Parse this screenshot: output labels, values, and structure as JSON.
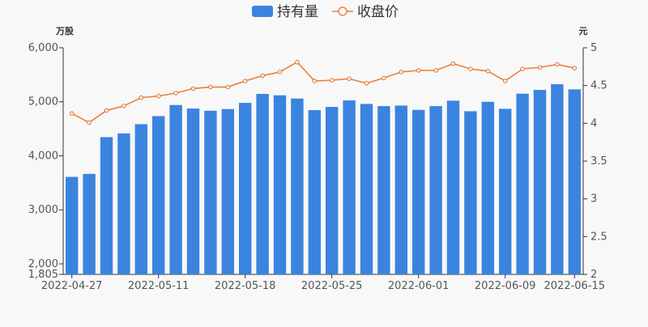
{
  "chart_data": {
    "type": "bar",
    "legend": {
      "placement": "top-center",
      "items": [
        {
          "name": "持有量",
          "kind": "bar"
        },
        {
          "name": "收盘价",
          "kind": "line"
        }
      ]
    },
    "y_left": {
      "unit_label": "万股",
      "min": 1805,
      "max": 6000,
      "ticks": [
        1805,
        2000,
        3000,
        4000,
        5000,
        6000
      ],
      "tick_labels": [
        "1,805",
        "2,000",
        "3,000",
        "4,000",
        "5,000",
        "6,000"
      ]
    },
    "y_right": {
      "unit_label": "元",
      "min": 2,
      "max": 5,
      "ticks": [
        2,
        2.5,
        3,
        3.5,
        4,
        4.5,
        5
      ],
      "tick_labels": [
        "2",
        "2.5",
        "3",
        "3.5",
        "4",
        "4.5",
        "5"
      ]
    },
    "x_tick_labels": [
      {
        "index": 0,
        "label": "2022-04-27"
      },
      {
        "index": 5,
        "label": "2022-05-11"
      },
      {
        "index": 10,
        "label": "2022-05-18"
      },
      {
        "index": 15,
        "label": "2022-05-25"
      },
      {
        "index": 20,
        "label": "2022-06-01"
      },
      {
        "index": 25,
        "label": "2022-06-09"
      },
      {
        "index": 29,
        "label": "2022-06-15"
      }
    ],
    "x_count": 30,
    "series": [
      {
        "name": "持有量",
        "axis": "left",
        "color": "#3a84e0",
        "values": [
          3610,
          3665,
          4345,
          4415,
          4585,
          4735,
          4940,
          4875,
          4835,
          4865,
          4980,
          5145,
          5120,
          5060,
          4845,
          4905,
          5025,
          4960,
          4920,
          4930,
          4850,
          4920,
          5020,
          4825,
          5000,
          4870,
          5150,
          5220,
          5325,
          5230
        ]
      },
      {
        "name": "收盘价",
        "axis": "right",
        "color": "#e8803a",
        "values": [
          4.13,
          4.01,
          4.17,
          4.23,
          4.34,
          4.36,
          4.4,
          4.46,
          4.48,
          4.48,
          4.56,
          4.63,
          4.68,
          4.81,
          4.56,
          4.57,
          4.59,
          4.53,
          4.6,
          4.68,
          4.7,
          4.7,
          4.79,
          4.72,
          4.69,
          4.56,
          4.72,
          4.74,
          4.78,
          4.73
        ]
      }
    ],
    "grid": false
  }
}
